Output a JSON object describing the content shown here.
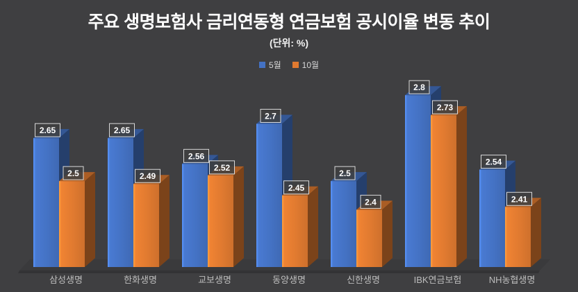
{
  "chart": {
    "background_color": "#3F3F41",
    "floor_color": "#3A3A3C",
    "floor_lip_color": "#333335",
    "title_color": "#FFFFFF",
    "category_label_color": "#BDBDBD",
    "data_label_text_color": "#FFFFFF",
    "data_label_border_color": "#D9D9D9"
  },
  "chart_data": {
    "type": "bar",
    "style": "3d-column",
    "title": "주요 생명보험사 금리연동형 연금보험 공시이율 변동 추이",
    "subtitle": "(단위: %)",
    "unit": "%",
    "categories": [
      "삼성생명",
      "한화생명",
      "교보생명",
      "동양생명",
      "신한생명",
      "IBK연금보험",
      "NH농협생명"
    ],
    "series": [
      {
        "name": "5월",
        "color": "#4472C4",
        "values": [
          2.65,
          2.65,
          2.56,
          2.7,
          2.5,
          2.8,
          2.54
        ]
      },
      {
        "name": "10월",
        "color": "#E07A30",
        "values": [
          2.5,
          2.49,
          2.52,
          2.45,
          2.4,
          2.73,
          2.41
        ]
      }
    ],
    "data_labels": true,
    "legend_position": "top",
    "grid": false,
    "value_axis": {
      "visible": false,
      "min_estimate": 2.2
    }
  }
}
